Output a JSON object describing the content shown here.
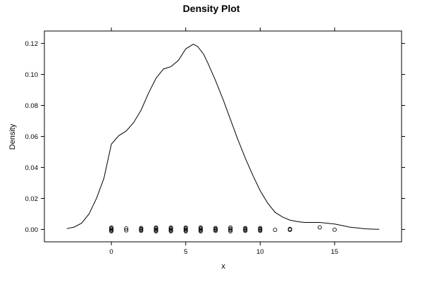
{
  "chart_data": {
    "type": "line",
    "title": "Density Plot",
    "xlabel": "x",
    "ylabel": "Density",
    "xlim": [
      -4.5,
      19.5
    ],
    "ylim": [
      -0.008,
      0.128
    ],
    "x_ticks": [
      0,
      5,
      10,
      15
    ],
    "x_tick_labels": [
      "0",
      "5",
      "10",
      "15"
    ],
    "y_ticks": [
      0.0,
      0.02,
      0.04,
      0.06,
      0.08,
      0.1,
      0.12
    ],
    "y_tick_labels": [
      "0.00",
      "0.02",
      "0.04",
      "0.06",
      "0.08",
      "0.10",
      "0.12"
    ],
    "grid": false,
    "series": [
      {
        "kind": "density-curve",
        "x": [
          -3,
          -2.5,
          -2,
          -1.5,
          -1,
          -0.5,
          0,
          0.5,
          1,
          1.5,
          2,
          2.5,
          3,
          3.5,
          4,
          4.5,
          5,
          5.5,
          5.8,
          6.2,
          6.5,
          7,
          7.5,
          8,
          8.5,
          9,
          9.5,
          10,
          10.5,
          11,
          11.5,
          12,
          12.5,
          13,
          13.5,
          14,
          14.5,
          15,
          15.5,
          16,
          16.5,
          17,
          17.5,
          18
        ],
        "y": [
          0.0005,
          0.0015,
          0.004,
          0.01,
          0.02,
          0.033,
          0.055,
          0.0605,
          0.0635,
          0.069,
          0.077,
          0.088,
          0.0975,
          0.1035,
          0.105,
          0.109,
          0.1165,
          0.1195,
          0.118,
          0.113,
          0.107,
          0.096,
          0.084,
          0.071,
          0.058,
          0.046,
          0.035,
          0.025,
          0.017,
          0.011,
          0.008,
          0.006,
          0.005,
          0.0045,
          0.0045,
          0.0045,
          0.004,
          0.0035,
          0.0025,
          0.0015,
          0.001,
          0.0004,
          0.0002,
          0.0001
        ]
      },
      {
        "kind": "rug-points",
        "points": [
          [
            0,
            0.0012
          ],
          [
            0,
            0.0006
          ],
          [
            0,
            0.0
          ],
          [
            0,
            -0.0006
          ],
          [
            0,
            -0.0012
          ],
          [
            1,
            0.0006
          ],
          [
            1,
            -0.0006
          ],
          [
            2,
            0.0009
          ],
          [
            2,
            0.0003
          ],
          [
            2,
            -0.0003
          ],
          [
            2,
            -0.0009
          ],
          [
            3,
            0.0012
          ],
          [
            3,
            0.0006
          ],
          [
            3,
            0.0
          ],
          [
            3,
            -0.0006
          ],
          [
            3,
            -0.0012
          ],
          [
            4,
            0.0012
          ],
          [
            4,
            0.0006
          ],
          [
            4,
            0.0
          ],
          [
            4,
            -0.0006
          ],
          [
            4,
            -0.0012
          ],
          [
            5,
            0.0012
          ],
          [
            5,
            0.0006
          ],
          [
            5,
            0.0
          ],
          [
            5,
            -0.0006
          ],
          [
            5,
            -0.0012
          ],
          [
            6,
            0.0012
          ],
          [
            6,
            0.0006
          ],
          [
            6,
            0.0
          ],
          [
            6,
            -0.0006
          ],
          [
            6,
            -0.0012
          ],
          [
            7,
            0.0009
          ],
          [
            7,
            0.0003
          ],
          [
            7,
            -0.0003
          ],
          [
            7,
            -0.0009
          ],
          [
            8,
            0.0012
          ],
          [
            8,
            0.0004
          ],
          [
            8,
            -0.0004
          ],
          [
            8,
            -0.0012
          ],
          [
            9,
            0.0009
          ],
          [
            9,
            0.0003
          ],
          [
            9,
            -0.0003
          ],
          [
            9,
            -0.0009
          ],
          [
            10,
            0.0009
          ],
          [
            10,
            0.0003
          ],
          [
            10,
            -0.0003
          ],
          [
            10,
            -0.0009
          ],
          [
            11,
            -0.0003
          ],
          [
            12,
            0.0003
          ],
          [
            12,
            -0.0003
          ],
          [
            14,
            0.0013
          ],
          [
            15,
            -0.0002
          ]
        ]
      }
    ]
  }
}
